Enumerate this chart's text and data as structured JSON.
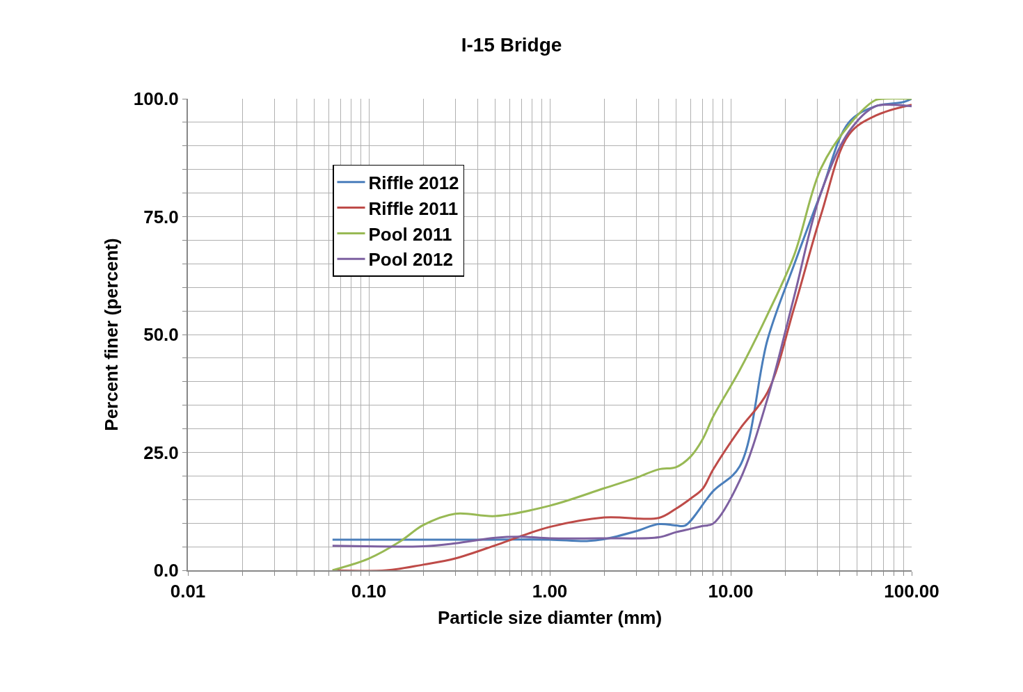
{
  "chart_data": {
    "type": "line",
    "title": "I-15 Bridge",
    "xlabel": "Particle size diamter (mm)",
    "ylabel": "Percent finer (percent)",
    "log": "x",
    "grid": true,
    "legend": "top left",
    "marker": "none",
    "line_style": "solid",
    "xlim": [
      0.01,
      100
    ],
    "ylim": [
      0,
      100
    ],
    "xticks": [
      {
        "value": 0.01,
        "label": "0.01"
      },
      {
        "value": 0.02,
        "label": null
      },
      {
        "value": 0.03,
        "label": null
      },
      {
        "value": 0.04,
        "label": null
      },
      {
        "value": 0.05,
        "label": null
      },
      {
        "value": 0.06,
        "label": null
      },
      {
        "value": 0.07,
        "label": null
      },
      {
        "value": 0.08,
        "label": null
      },
      {
        "value": 0.09,
        "label": null
      },
      {
        "value": 0.1,
        "label": "0.10"
      },
      {
        "value": 0.2,
        "label": null
      },
      {
        "value": 0.3,
        "label": null
      },
      {
        "value": 0.4,
        "label": null
      },
      {
        "value": 0.5,
        "label": null
      },
      {
        "value": 0.6,
        "label": null
      },
      {
        "value": 0.7,
        "label": null
      },
      {
        "value": 0.8,
        "label": null
      },
      {
        "value": 0.9,
        "label": null
      },
      {
        "value": 1,
        "label": "1.00"
      },
      {
        "value": 2,
        "label": null
      },
      {
        "value": 3,
        "label": null
      },
      {
        "value": 4,
        "label": null
      },
      {
        "value": 5,
        "label": null
      },
      {
        "value": 6,
        "label": null
      },
      {
        "value": 7,
        "label": null
      },
      {
        "value": 8,
        "label": null
      },
      {
        "value": 9,
        "label": null
      },
      {
        "value": 10,
        "label": "10.00"
      },
      {
        "value": 20,
        "label": null
      },
      {
        "value": 30,
        "label": null
      },
      {
        "value": 40,
        "label": null
      },
      {
        "value": 50,
        "label": null
      },
      {
        "value": 60,
        "label": null
      },
      {
        "value": 70,
        "label": null
      },
      {
        "value": 80,
        "label": null
      },
      {
        "value": 90,
        "label": null
      },
      {
        "value": 100,
        "label": "100.00"
      }
    ],
    "yticks": [
      {
        "value": 0,
        "label": "0.0"
      },
      {
        "value": 5,
        "label": null
      },
      {
        "value": 10,
        "label": null
      },
      {
        "value": 15,
        "label": null
      },
      {
        "value": 20,
        "label": null
      },
      {
        "value": 25,
        "label": "25.0"
      },
      {
        "value": 30,
        "label": null
      },
      {
        "value": 35,
        "label": null
      },
      {
        "value": 40,
        "label": null
      },
      {
        "value": 45,
        "label": null
      },
      {
        "value": 50,
        "label": "50.0"
      },
      {
        "value": 55,
        "label": null
      },
      {
        "value": 60,
        "label": null
      },
      {
        "value": 65,
        "label": null
      },
      {
        "value": 70,
        "label": null
      },
      {
        "value": 75,
        "label": "75.0"
      },
      {
        "value": 80,
        "label": null
      },
      {
        "value": 85,
        "label": null
      },
      {
        "value": 90,
        "label": null
      },
      {
        "value": 95,
        "label": null
      },
      {
        "value": 100,
        "label": "100.0"
      }
    ],
    "series": [
      {
        "name": "Riffle 2012",
        "color": "#4a7ebb",
        "x": [
          0.063,
          0.125,
          0.25,
          0.5,
          1,
          1.6,
          2,
          3,
          4,
          5,
          5.6,
          8,
          11.2,
          16,
          22.4,
          31.5,
          45,
          63,
          90,
          100
        ],
        "values": [
          6.5,
          6.5,
          6.5,
          6.5,
          6.5,
          6.2,
          6.6,
          8.3,
          9.8,
          9.5,
          9.5,
          16.8,
          22,
          49,
          64.8,
          80,
          95,
          98.4,
          99.3,
          100
        ]
      },
      {
        "name": "Riffle 2011",
        "color": "#be4b48",
        "x": [
          0.063,
          0.125,
          0.2,
          0.3,
          0.5,
          0.7,
          1,
          2,
          4,
          5,
          6,
          7,
          8,
          11.2,
          16,
          22.4,
          31.5,
          45,
          63,
          100
        ],
        "values": [
          0,
          0,
          1.2,
          2.5,
          5.3,
          7.3,
          9.2,
          11.2,
          11.1,
          13.1,
          15.2,
          17.3,
          21.4,
          29.9,
          37.8,
          55.6,
          75.3,
          92.4,
          96.4,
          98.7
        ]
      },
      {
        "name": "Pool 2011",
        "color": "#98b954",
        "x": [
          0.063,
          0.1,
          0.15,
          0.2,
          0.3,
          0.5,
          1,
          2,
          3,
          4,
          5,
          6,
          7,
          8,
          11.2,
          16,
          22.4,
          31.5,
          45,
          63,
          70,
          100
        ],
        "values": [
          0,
          2.5,
          6.2,
          9.6,
          12,
          11.5,
          13.7,
          17.4,
          19.6,
          21.4,
          21.9,
          24.1,
          27.8,
          32.6,
          42.4,
          54.3,
          66.8,
          85.2,
          94.4,
          99.7,
          100,
          100
        ]
      },
      {
        "name": "Pool 2012",
        "color": "#7d60a0",
        "x": [
          0.063,
          0.2,
          0.3,
          0.5,
          0.7,
          1,
          2,
          4,
          5,
          6,
          7,
          8,
          11.2,
          16,
          22.4,
          31.5,
          45,
          63,
          80,
          100
        ],
        "values": [
          5.2,
          5.1,
          5.7,
          6.9,
          7.1,
          6.8,
          6.8,
          7.0,
          8.1,
          8.8,
          9.4,
          9.9,
          19,
          36.5,
          58,
          80,
          93,
          98.4,
          98.7,
          98.4
        ]
      }
    ]
  }
}
